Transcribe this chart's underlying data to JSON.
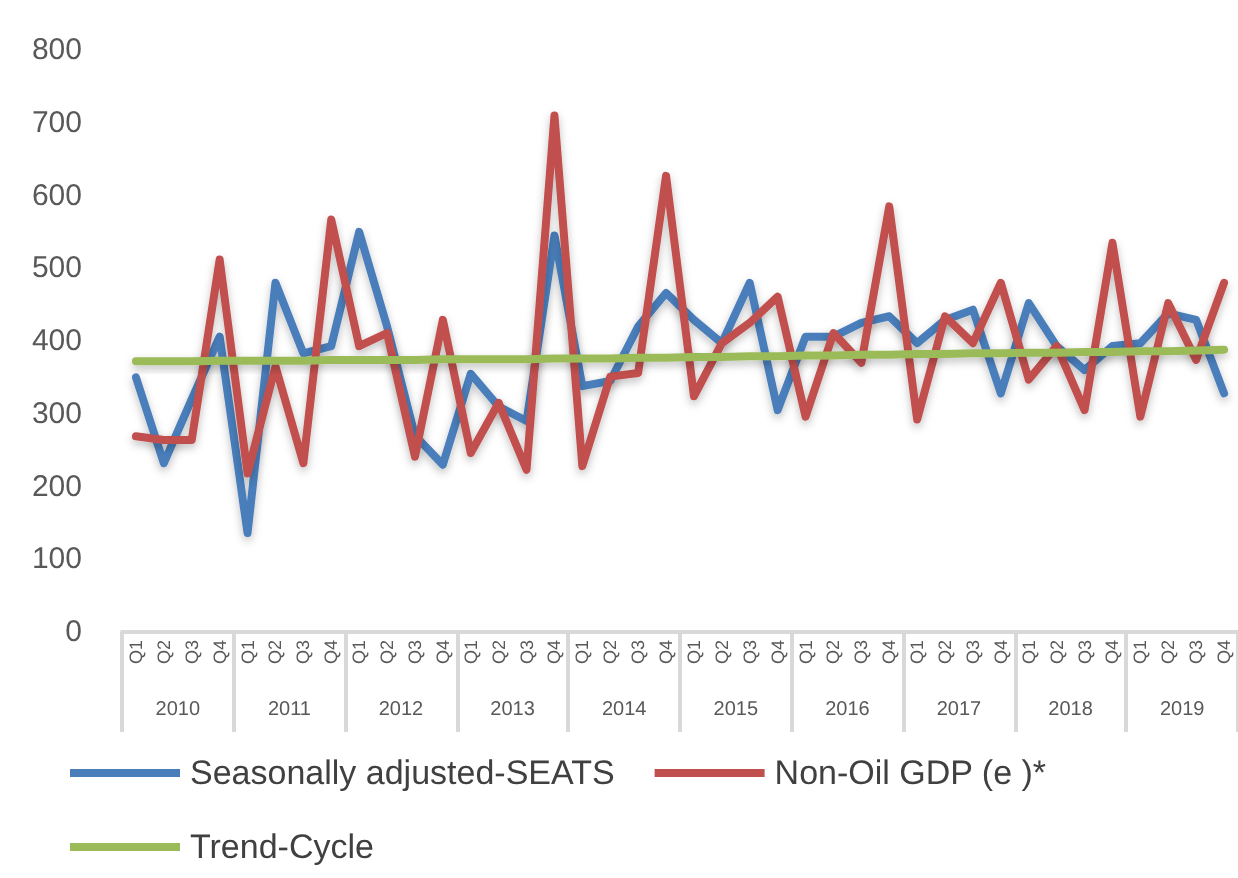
{
  "chart_data": {
    "type": "line",
    "categories": [
      "Q1",
      "Q2",
      "Q3",
      "Q4",
      "Q1",
      "Q2",
      "Q3",
      "Q4",
      "Q1",
      "Q2",
      "Q3",
      "Q4",
      "Q1",
      "Q2",
      "Q3",
      "Q4",
      "Q1",
      "Q2",
      "Q3",
      "Q4",
      "Q1",
      "Q2",
      "Q3",
      "Q4",
      "Q1",
      "Q2",
      "Q3",
      "Q4",
      "Q1",
      "Q2",
      "Q3",
      "Q4",
      "Q1",
      "Q2",
      "Q3",
      "Q4",
      "Q1",
      "Q2",
      "Q3",
      "Q4"
    ],
    "annotations": [
      "2010",
      "2011",
      "2012",
      "2013",
      "2014",
      "2015",
      "2016",
      "2017",
      "2018",
      "2019"
    ],
    "series": [
      {
        "name": "Seasonally adjusted-SEATS",
        "color": "#4a7ebb",
        "values": [
          350,
          232,
          320,
          406,
          136,
          480,
          383,
          393,
          550,
          420,
          270,
          230,
          355,
          310,
          290,
          545,
          338,
          345,
          420,
          466,
          429,
          397,
          480,
          305,
          406,
          406,
          425,
          434,
          397,
          429,
          443,
          328,
          452,
          393,
          360,
          393,
          397,
          438,
          429,
          328
        ]
      },
      {
        "name": "Non-Oil GDP (e )*",
        "color": "#c0504d",
        "values": [
          269,
          264,
          264,
          512,
          218,
          365,
          232,
          567,
          393,
          411,
          241,
          429,
          246,
          315,
          223,
          710,
          228,
          351,
          356,
          627,
          324,
          397,
          425,
          461,
          296,
          411,
          370,
          585,
          292,
          434,
          397,
          480,
          347,
          393,
          305,
          535,
          296,
          452,
          374,
          480
        ]
      },
      {
        "name": "Trend-Cycle",
        "color": "#9bbb59",
        "values": [
          372,
          372,
          372,
          373,
          373,
          373,
          373,
          374,
          374,
          374,
          374,
          375,
          375,
          375,
          375,
          376,
          376,
          376,
          377,
          377,
          378,
          378,
          379,
          379,
          380,
          380,
          381,
          381,
          382,
          382,
          383,
          383,
          384,
          384,
          385,
          385,
          386,
          386,
          387,
          388
        ]
      }
    ],
    "ylim": [
      0,
      800
    ],
    "yticks": [
      0,
      100,
      200,
      300,
      400,
      500,
      600,
      700,
      800
    ],
    "grid": false,
    "legend": "bottom left",
    "marker": "none",
    "line_style": "solid"
  }
}
